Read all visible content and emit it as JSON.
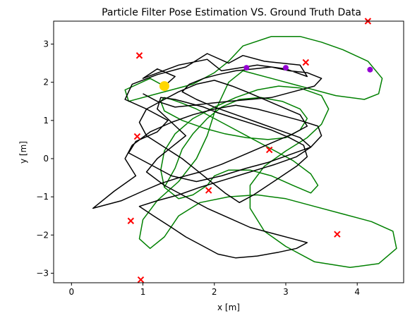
{
  "chart_data": {
    "type": "line",
    "title": "Particle Filter Pose Estimation VS. Ground Truth Data",
    "xlabel": "x [m]",
    "ylabel": "y [m]",
    "xlim": [
      -0.25,
      4.65
    ],
    "ylim": [
      -3.25,
      3.6
    ],
    "xticks": [
      0,
      1,
      2,
      3,
      4
    ],
    "yticks": [
      -3,
      -2,
      -1,
      0,
      1,
      2,
      3
    ],
    "grid": false,
    "legend": "none",
    "colors": {
      "estimate": "#000000",
      "ground_truth": "#008000",
      "landmarks": "#ff0000",
      "markers": "#9400d3",
      "start": "#ffd700"
    },
    "landmarks": [
      [
        4.15,
        3.6
      ],
      [
        0.95,
        2.7
      ],
      [
        3.28,
        2.52
      ],
      [
        0.92,
        0.58
      ],
      [
        2.77,
        0.23
      ],
      [
        1.92,
        -0.83
      ],
      [
        3.72,
        -1.98
      ],
      [
        0.83,
        -1.63
      ],
      [
        0.97,
        -3.17
      ]
    ],
    "purple_markers": [
      [
        2.45,
        2.38
      ],
      [
        4.18,
        2.33
      ],
      [
        3.0,
        2.38
      ]
    ],
    "start_marker": [
      1.3,
      1.9
    ],
    "series": [
      {
        "color": "#008000",
        "x": [
          1.3,
          1.1,
          0.75,
          0.8,
          1.2,
          1.7,
          2.0,
          2.2,
          2.4,
          2.8,
          3.2,
          3.5,
          3.8,
          4.15,
          4.35,
          4.3,
          4.1,
          3.7,
          3.2,
          2.8,
          2.4,
          2.2,
          2.1,
          2.0,
          1.9,
          1.75,
          1.5,
          1.2,
          1.0,
          0.95,
          1.1,
          1.3,
          1.5,
          1.8,
          2.2,
          2.6,
          3.0,
          3.4,
          3.8,
          4.2,
          4.5,
          4.55,
          4.3,
          3.9,
          3.4,
          3.0,
          2.7,
          2.5,
          2.5,
          2.7,
          3.0,
          3.3,
          3.5,
          3.6,
          3.5,
          3.2,
          2.9,
          2.6,
          2.3,
          2.0,
          1.7,
          1.45,
          1.3,
          1.25,
          1.3,
          1.5,
          1.7,
          1.9,
          2.0,
          2.2,
          2.5,
          2.8,
          3.1,
          3.35,
          3.45,
          3.35,
          3.1,
          2.8,
          2.5,
          2.2,
          1.95,
          1.75,
          1.55,
          1.4,
          1.3,
          1.25,
          1.3,
          1.55,
          1.85,
          2.15,
          2.45,
          2.75,
          3.0,
          3.2,
          3.3,
          3.2,
          2.95,
          2.65,
          2.35,
          2.1,
          1.9,
          1.7,
          1.55,
          1.45,
          1.3
        ],
        "y": [
          1.9,
          2.1,
          1.8,
          1.5,
          1.7,
          1.95,
          2.25,
          2.55,
          2.95,
          3.2,
          3.2,
          3.05,
          2.85,
          2.55,
          2.1,
          1.7,
          1.55,
          1.65,
          1.9,
          2.1,
          2.3,
          2.0,
          1.6,
          1.2,
          0.6,
          0.0,
          -0.6,
          -1.1,
          -1.6,
          -2.1,
          -2.35,
          -2.05,
          -1.5,
          -1.15,
          -1.0,
          -0.95,
          -1.05,
          -1.25,
          -1.45,
          -1.65,
          -1.9,
          -2.35,
          -2.75,
          -2.85,
          -2.7,
          -2.3,
          -1.9,
          -1.3,
          -0.7,
          -0.2,
          0.2,
          0.55,
          0.9,
          1.3,
          1.65,
          1.85,
          1.9,
          1.8,
          1.6,
          1.35,
          1.05,
          0.65,
          0.2,
          -0.3,
          -0.75,
          -1.05,
          -0.95,
          -0.7,
          -0.45,
          -0.3,
          -0.3,
          -0.45,
          -0.7,
          -0.9,
          -0.7,
          -0.4,
          -0.05,
          0.25,
          0.55,
          0.85,
          1.1,
          1.3,
          1.45,
          1.55,
          1.6,
          1.5,
          1.25,
          1.0,
          0.8,
          0.65,
          0.55,
          0.5,
          0.55,
          0.75,
          1.05,
          1.3,
          1.5,
          1.6,
          1.55,
          1.35,
          1.05,
          0.65,
          0.25,
          -0.25,
          -0.75
        ]
      },
      {
        "color": "#000000",
        "x": [
          1.3,
          1.45,
          1.2,
          1.0,
          1.5,
          1.9,
          2.1,
          2.6,
          3.0,
          3.3,
          3.2,
          2.7,
          2.4,
          2.2,
          1.9,
          1.6,
          1.2,
          0.85,
          0.75,
          1.05,
          1.35,
          1.2,
          0.9,
          0.8,
          1.1,
          1.4,
          1.75,
          2.1,
          2.45,
          2.75,
          3.05,
          3.35,
          3.5,
          3.45,
          3.2,
          2.9,
          2.6,
          2.3,
          2.0,
          1.7,
          1.4,
          1.1,
          0.85,
          0.75,
          0.9,
          0.6,
          0.3,
          0.7,
          1.0,
          1.25,
          1.5,
          1.8,
          2.1,
          2.35,
          2.6,
          2.85,
          3.1,
          3.3,
          3.2,
          2.95,
          2.7,
          2.45,
          2.25,
          2.0,
          1.75,
          1.5,
          1.3,
          1.05,
          0.95,
          1.05,
          1.3,
          1.55,
          1.75,
          1.95,
          2.15,
          2.35,
          2.55,
          2.75,
          2.95,
          3.15,
          3.3,
          3.25,
          3.05,
          2.8,
          2.55,
          2.3,
          2.05,
          1.85,
          1.65,
          1.45,
          1.25,
          1.2,
          1.4,
          1.6,
          1.4,
          1.2,
          1.05,
          1.3,
          1.6,
          1.9,
          2.2,
          2.5,
          2.8,
          3.1,
          3.3,
          3.15,
          2.9,
          2.6,
          2.3,
          2.05,
          1.85,
          1.6,
          1.4,
          1.15,
          0.95,
          1.2,
          1.5,
          1.8,
          2.15,
          2.5,
          2.85,
          3.15,
          3.35,
          3.2,
          2.9,
          2.6,
          2.3,
          2.0,
          1.75,
          1.55,
          1.65,
          1.85,
          2.05,
          2.3,
          2.55,
          2.8,
          3.05,
          3.3,
          3.5,
          3.4,
          3.1,
          2.8,
          2.5,
          2.2,
          1.95,
          1.7,
          1.45,
          1.2,
          1.0
        ],
        "y": [
          1.9,
          2.15,
          2.35,
          2.1,
          2.45,
          2.6,
          2.3,
          2.45,
          2.35,
          2.15,
          2.45,
          2.55,
          2.7,
          2.5,
          2.75,
          2.4,
          2.2,
          1.95,
          1.55,
          1.3,
          1.0,
          0.7,
          0.45,
          0.15,
          -0.15,
          -0.45,
          -0.6,
          -0.45,
          -0.25,
          -0.1,
          0.1,
          0.3,
          0.6,
          0.85,
          1.0,
          1.15,
          1.3,
          1.4,
          1.3,
          1.15,
          0.95,
          0.7,
          0.35,
          0.0,
          -0.45,
          -0.85,
          -1.3,
          -1.1,
          -0.85,
          -0.65,
          -0.5,
          -0.35,
          -0.15,
          0.05,
          0.25,
          0.45,
          0.65,
          0.85,
          1.15,
          1.35,
          1.55,
          1.75,
          1.9,
          2.05,
          1.95,
          1.75,
          1.55,
          1.3,
          0.95,
          0.6,
          0.3,
          0.0,
          -0.3,
          -0.6,
          -0.9,
          -1.15,
          -0.95,
          -0.7,
          -0.45,
          -0.2,
          0.05,
          0.35,
          0.55,
          0.75,
          0.9,
          1.05,
          1.2,
          1.35,
          1.45,
          1.55,
          1.6,
          1.3,
          0.95,
          0.6,
          0.3,
          0.0,
          -0.35,
          -0.7,
          -1.0,
          -1.3,
          -1.55,
          -1.8,
          -1.95,
          -2.1,
          -2.2,
          -2.35,
          -2.45,
          -2.55,
          -2.6,
          -2.5,
          -2.3,
          -2.05,
          -1.8,
          -1.5,
          -1.25,
          -1.1,
          -0.95,
          -0.75,
          -0.55,
          -0.35,
          -0.15,
          0.05,
          0.3,
          0.55,
          0.75,
          0.95,
          1.15,
          1.35,
          1.55,
          1.75,
          1.95,
          2.1,
          2.2,
          2.3,
          2.35,
          2.4,
          2.3,
          2.25,
          2.1,
          1.9,
          1.75,
          1.6,
          1.55,
          1.5,
          1.45,
          1.4,
          1.35,
          1.5,
          1.7
        ]
      }
    ]
  }
}
